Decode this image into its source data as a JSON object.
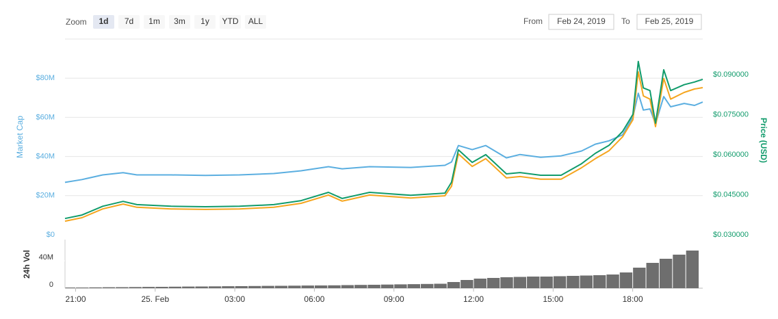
{
  "controls": {
    "zoom_label": "Zoom",
    "zoom_options": [
      "1d",
      "7d",
      "1m",
      "3m",
      "1y",
      "YTD",
      "ALL"
    ],
    "active_zoom_index": 0,
    "from_label": "From",
    "from_date": "Feb 24, 2019",
    "to_label": "To",
    "to_date": "Feb 25, 2019"
  },
  "chart_data": [
    {
      "type": "line",
      "ylabel": "Market Cap",
      "y2label": "Price (USD)",
      "grid": true,
      "x": [
        -3.4,
        -2.76,
        -1.98,
        -1.21,
        -0.69,
        0.6,
        1.89,
        3.18,
        4.47,
        5.5,
        6.53,
        7.05,
        8.08,
        9.63,
        10.92,
        11.17,
        11.43,
        11.95,
        12.46,
        13.24,
        13.75,
        14.53,
        15.3,
        16.07,
        16.59,
        17.11,
        17.62,
        18.01,
        18.21,
        18.4,
        18.65,
        18.86,
        19.17,
        19.43,
        19.94,
        20.33,
        20.64
      ],
      "xlim": [
        -3.4,
        20.64
      ],
      "ylim": [
        0,
        100000000
      ],
      "yticks": [
        {
          "value": 0,
          "label": "$0"
        },
        {
          "value": 20000000,
          "label": "$20M"
        },
        {
          "value": 40000000,
          "label": "$40M"
        },
        {
          "value": 60000000,
          "label": "$60M"
        },
        {
          "value": 80000000,
          "label": "$80M"
        }
      ],
      "y2lim": [
        0.03,
        0.1033
      ],
      "y2ticks": [
        {
          "value": 0.03,
          "label": "$0.030000"
        },
        {
          "value": 0.045,
          "label": "$0.045000"
        },
        {
          "value": 0.06,
          "label": "$0.060000"
        },
        {
          "value": 0.075,
          "label": "$0.075000"
        },
        {
          "value": 0.09,
          "label": "$0.090000"
        }
      ],
      "series": [
        {
          "color": "#5aaee0",
          "values": [
            26800000,
            28200000,
            30600000,
            31700000,
            30600000,
            30600000,
            30300000,
            30600000,
            31300000,
            32700000,
            34800000,
            33700000,
            34800000,
            34400000,
            35500000,
            37200000,
            45600000,
            43500000,
            45600000,
            39300000,
            41000000,
            39600000,
            40300000,
            42800000,
            46300000,
            48000000,
            51100000,
            60200000,
            72300000,
            63700000,
            64300000,
            56700000,
            70600000,
            65400000,
            67100000,
            66100000,
            67800000
          ]
        },
        {
          "color": "#f5a51e",
          "axis": "y2",
          "values": [
            0.0351,
            0.0364,
            0.0397,
            0.0415,
            0.0403,
            0.0397,
            0.0395,
            0.0397,
            0.0403,
            0.0418,
            0.0449,
            0.0426,
            0.0449,
            0.0438,
            0.0446,
            0.0482,
            0.0603,
            0.0556,
            0.0585,
            0.0513,
            0.0518,
            0.0508,
            0.0508,
            0.0551,
            0.0585,
            0.0615,
            0.0667,
            0.0731,
            0.091,
            0.082,
            0.0808,
            0.0705,
            0.0885,
            0.0808,
            0.0833,
            0.0846,
            0.0851
          ]
        },
        {
          "color": "#109b6b",
          "axis": "y2",
          "values": [
            0.0361,
            0.0374,
            0.0407,
            0.0425,
            0.0413,
            0.0407,
            0.0405,
            0.0407,
            0.0413,
            0.0428,
            0.0459,
            0.0436,
            0.0459,
            0.0448,
            0.0456,
            0.0497,
            0.0618,
            0.0571,
            0.06,
            0.0528,
            0.0533,
            0.0523,
            0.0523,
            0.0566,
            0.0605,
            0.0635,
            0.0687,
            0.0751,
            0.0949,
            0.085,
            0.084,
            0.0718,
            0.0918,
            0.084,
            0.0862,
            0.0872,
            0.0882
          ]
        }
      ]
    },
    {
      "type": "bar",
      "ylabel": "24h Vol",
      "color": "#6e6e6e",
      "x": [
        -3.25,
        -2.75,
        -2.25,
        -1.75,
        -1.25,
        -0.75,
        -0.25,
        0.25,
        0.75,
        1.25,
        1.75,
        2.25,
        2.75,
        3.25,
        3.75,
        4.25,
        4.75,
        5.25,
        5.75,
        6.25,
        6.75,
        7.25,
        7.75,
        8.25,
        8.75,
        9.25,
        9.75,
        10.25,
        10.75,
        11.25,
        11.75,
        12.25,
        12.75,
        13.25,
        13.75,
        14.25,
        14.75,
        15.25,
        15.75,
        16.25,
        16.75,
        17.25,
        17.75,
        18.25,
        18.75,
        19.25,
        19.75,
        20.25
      ],
      "values": [
        1000000,
        1000000,
        1200000,
        1400000,
        1500000,
        1700000,
        1900000,
        2000000,
        2200000,
        2400000,
        2500000,
        2700000,
        2900000,
        3000000,
        3200000,
        3400000,
        3500000,
        3700000,
        3900000,
        4000000,
        4200000,
        4500000,
        4800000,
        5000000,
        5300000,
        5600000,
        5900000,
        6200000,
        6500000,
        9000000,
        12000000,
        14000000,
        15000000,
        16000000,
        16500000,
        17000000,
        17000000,
        17500000,
        18000000,
        18500000,
        19000000,
        20000000,
        23000000,
        30000000,
        37000000,
        43000000,
        49000000,
        55000000
      ],
      "xlim": [
        -3.4,
        20.64
      ],
      "xticks": [
        {
          "value": -3,
          "label": "21:00"
        },
        {
          "value": 0,
          "label": "25. Feb"
        },
        {
          "value": 3,
          "label": "03:00"
        },
        {
          "value": 6,
          "label": "06:00"
        },
        {
          "value": 9,
          "label": "09:00"
        },
        {
          "value": 12,
          "label": "12:00"
        },
        {
          "value": 15,
          "label": "15:00"
        },
        {
          "value": 18,
          "label": "18:00"
        }
      ],
      "ylim": [
        0,
        70000000
      ],
      "yticks": [
        0,
        {
          "value": 40000000,
          "label": "40M"
        }
      ]
    }
  ]
}
